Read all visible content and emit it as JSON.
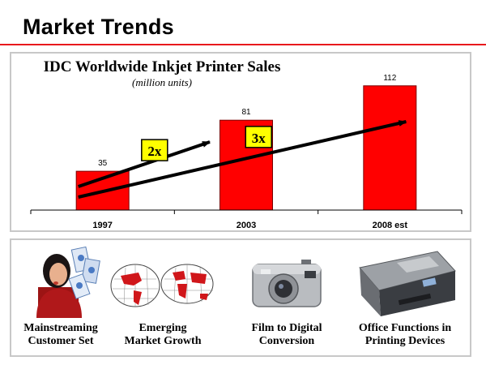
{
  "slide": {
    "title": "Market Trends"
  },
  "chart_data": {
    "type": "bar",
    "title": "IDC Worldwide Inkjet Printer Sales",
    "subtitle": "(million units)",
    "categories": [
      "1997",
      "2003",
      "2008 est"
    ],
    "values": [
      35,
      81,
      112
    ],
    "data_labels": [
      "35",
      "81",
      "112"
    ],
    "ylim": [
      0,
      125
    ],
    "grid": false,
    "bar_color": "#ff0000",
    "annotations": [
      {
        "label": "2x",
        "from": "1997",
        "to": "2003"
      },
      {
        "label": "3x",
        "from": "1997",
        "to": "2008 est"
      }
    ]
  },
  "features": [
    {
      "icon": "woman-with-printouts-photo-icon",
      "line1": "Mainstreaming",
      "line2": "Customer Set"
    },
    {
      "icon": "world-map-icon",
      "line1": "Emerging",
      "line2": "Market Growth"
    },
    {
      "icon": "digital-camera-icon",
      "line1": "Film to Digital",
      "line2": "Conversion"
    },
    {
      "icon": "all-in-one-printer-icon",
      "line1": "Office Functions in",
      "line2": "Printing Devices"
    }
  ],
  "colors": {
    "accent_red": "#e8191c",
    "bar_red": "#ff0000",
    "callout_yellow": "#ffff00",
    "panel_border": "#c8c8c8"
  }
}
